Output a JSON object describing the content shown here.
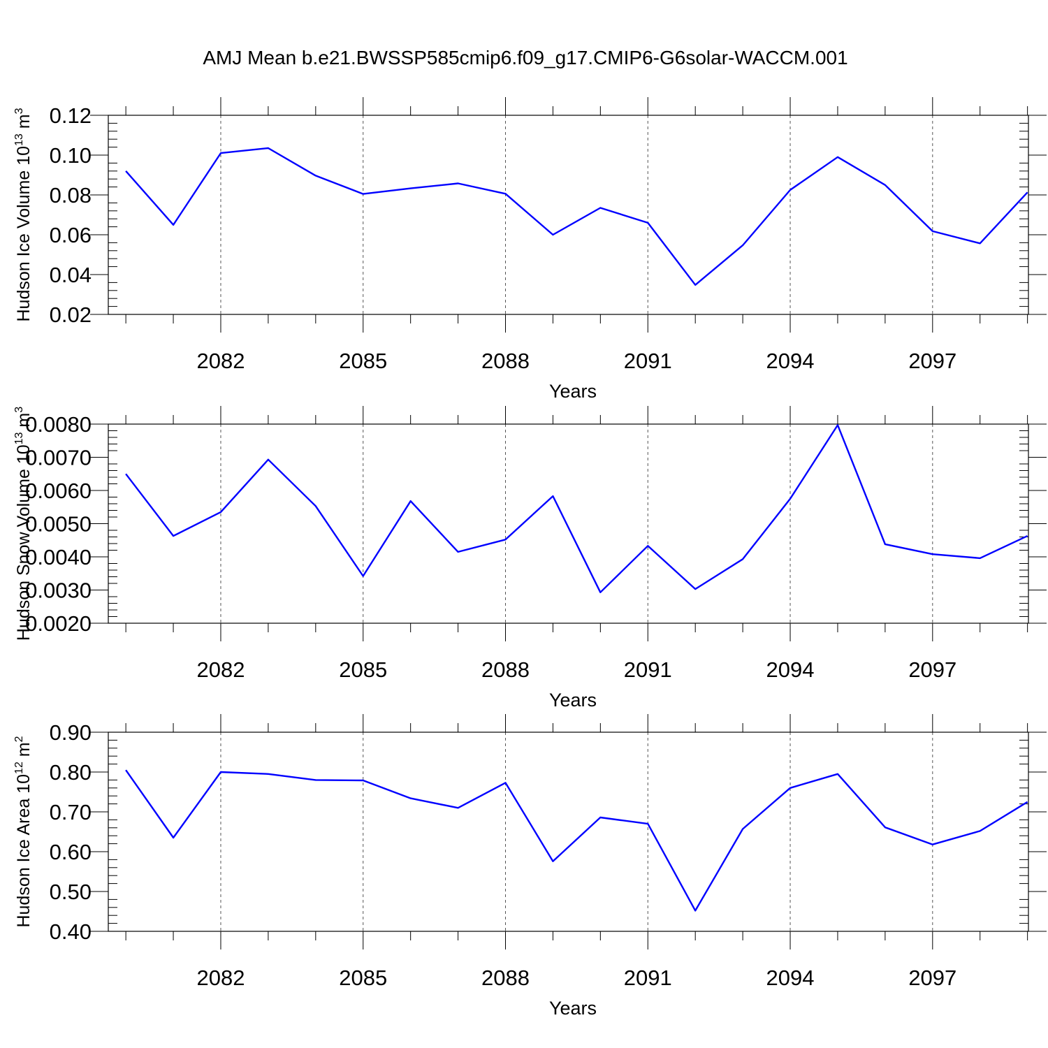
{
  "figure": {
    "title": "AMJ Mean b.e21.BWSSP585cmip6.f09_g17.CMIP6-G6solar-WACCM.001"
  },
  "chart_data": [
    {
      "type": "line",
      "title": "",
      "xlabel": "Years",
      "ylabel": "Hudson Ice Volume 10",
      "ylabel_sup": "13",
      "ylabel_unit": " m",
      "ylabel_unit_sup": "3",
      "xlim": [
        2080,
        2099
      ],
      "ylim": [
        0.02,
        0.12
      ],
      "x_ticks": [
        2082,
        2085,
        2088,
        2091,
        2094,
        2097
      ],
      "x_tick_labels": [
        "2082",
        "2085",
        "2088",
        "2091",
        "2094",
        "2097"
      ],
      "y_ticks": [
        0.02,
        0.04,
        0.06,
        0.08,
        0.1,
        0.12
      ],
      "y_tick_labels": [
        "0.02",
        "0.04",
        "0.06",
        "0.08",
        "0.10",
        "0.12"
      ],
      "grid": "vertical dashed at labeled x ticks",
      "color": "#0000ff",
      "series": [
        {
          "x": [
            2080,
            2081,
            2082,
            2083,
            2084,
            2085,
            2086,
            2087,
            2088,
            2089,
            2090,
            2091,
            2092,
            2093,
            2094,
            2095,
            2096,
            2097,
            2098,
            2099
          ],
          "values": [
            0.092,
            0.065,
            0.101,
            0.1035,
            0.0897,
            0.0805,
            0.0833,
            0.0858,
            0.0806,
            0.06,
            0.0735,
            0.066,
            0.0348,
            0.0547,
            0.0825,
            0.099,
            0.085,
            0.0618,
            0.0557,
            0.0813
          ]
        }
      ]
    },
    {
      "type": "line",
      "title": "",
      "xlabel": "Years",
      "ylabel": "Hudson Snow Volume 10",
      "ylabel_sup": "13",
      "ylabel_unit": " m",
      "ylabel_unit_sup": "3",
      "xlim": [
        2080,
        2099
      ],
      "ylim": [
        0.002,
        0.008
      ],
      "x_ticks": [
        2082,
        2085,
        2088,
        2091,
        2094,
        2097
      ],
      "x_tick_labels": [
        "2082",
        "2085",
        "2088",
        "2091",
        "2094",
        "2097"
      ],
      "y_ticks": [
        0.002,
        0.003,
        0.004,
        0.005,
        0.006,
        0.007,
        0.008
      ],
      "y_tick_labels": [
        "0.0020",
        "0.0030",
        "0.0040",
        "0.0050",
        "0.0060",
        "0.0070",
        "0.0080"
      ],
      "grid": "vertical dashed at labeled x ticks",
      "color": "#0000ff",
      "series": [
        {
          "x": [
            2080,
            2081,
            2082,
            2083,
            2084,
            2085,
            2086,
            2087,
            2088,
            2089,
            2090,
            2091,
            2092,
            2093,
            2094,
            2095,
            2096,
            2097,
            2098,
            2099
          ],
          "values": [
            0.0065,
            0.00463,
            0.00535,
            0.00693,
            0.00553,
            0.00342,
            0.00568,
            0.00415,
            0.00452,
            0.00583,
            0.00293,
            0.00433,
            0.00303,
            0.00393,
            0.00575,
            0.00797,
            0.00438,
            0.00408,
            0.00396,
            0.00463
          ]
        }
      ]
    },
    {
      "type": "line",
      "title": "",
      "xlabel": "Years",
      "ylabel": "Hudson Ice Area 10",
      "ylabel_sup": "12",
      "ylabel_unit": " m",
      "ylabel_unit_sup": "2",
      "xlim": [
        2080,
        2099
      ],
      "ylim": [
        0.4,
        0.9
      ],
      "x_ticks": [
        2082,
        2085,
        2088,
        2091,
        2094,
        2097
      ],
      "x_tick_labels": [
        "2082",
        "2085",
        "2088",
        "2091",
        "2094",
        "2097"
      ],
      "y_ticks": [
        0.4,
        0.5,
        0.6,
        0.7,
        0.8,
        0.9
      ],
      "y_tick_labels": [
        "0.40",
        "0.50",
        "0.60",
        "0.70",
        "0.80",
        "0.90"
      ],
      "grid": "vertical dashed at labeled x ticks",
      "color": "#0000ff",
      "series": [
        {
          "x": [
            2080,
            2081,
            2082,
            2083,
            2084,
            2085,
            2086,
            2087,
            2088,
            2089,
            2090,
            2091,
            2092,
            2093,
            2094,
            2095,
            2096,
            2097,
            2098,
            2099
          ],
          "values": [
            0.805,
            0.635,
            0.8,
            0.795,
            0.78,
            0.779,
            0.734,
            0.71,
            0.773,
            0.576,
            0.686,
            0.67,
            0.452,
            0.657,
            0.76,
            0.795,
            0.661,
            0.618,
            0.652,
            0.725
          ]
        }
      ]
    }
  ]
}
